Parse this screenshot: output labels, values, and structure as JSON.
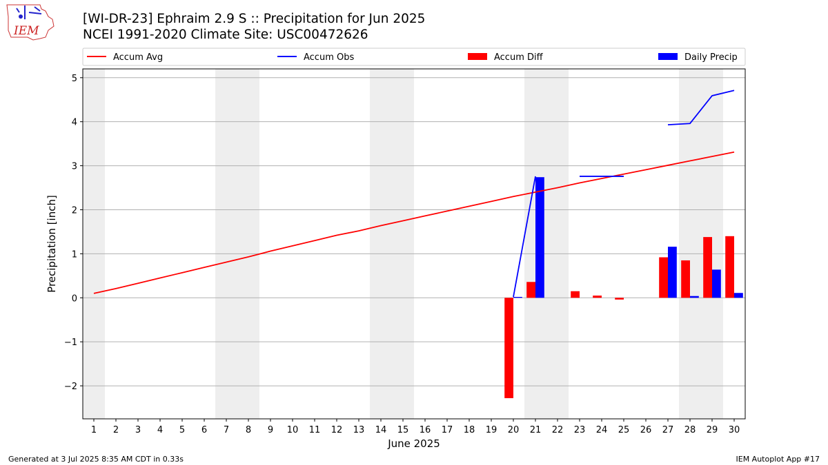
{
  "header": {
    "title_line1": "[WI-DR-23] Ephraim 2.9 S :: Precipitation for Jun 2025",
    "title_line2": "NCEI 1991-2020 Climate Site: USC00472626"
  },
  "logo": {
    "text": "IEM"
  },
  "footer": {
    "left": "Generated at 3 Jul 2025 8:35 AM CDT in 0.33s",
    "right": "IEM Autoplot App #17"
  },
  "colors": {
    "avg": "#ff0000",
    "obs": "#0000ff",
    "diff": "#ff0000",
    "daily": "#0000ff",
    "weekend_shade": "#eeeeee",
    "grid": "#b0b0b0"
  },
  "chart_data": {
    "type": "bar+line",
    "xlabel": "June 2025",
    "ylabel": "Precipitation [inch]",
    "xlim": [
      0.5,
      30.5
    ],
    "ylim": [
      -2.75,
      5.2
    ],
    "yticks": [
      -2,
      -1,
      0,
      1,
      2,
      3,
      4,
      5
    ],
    "ytick_labels": [
      "−2",
      "−1",
      "0",
      "1",
      "2",
      "3",
      "4",
      "5"
    ],
    "days": [
      1,
      2,
      3,
      4,
      5,
      6,
      7,
      8,
      9,
      10,
      11,
      12,
      13,
      14,
      15,
      16,
      17,
      18,
      19,
      20,
      21,
      22,
      23,
      24,
      25,
      26,
      27,
      28,
      29,
      30
    ],
    "grid": "horizontal",
    "legend_placement": "top",
    "weekend_spans": [
      [
        0.5,
        1.5
      ],
      [
        6.5,
        8.5
      ],
      [
        13.5,
        15.5
      ],
      [
        20.5,
        22.5
      ],
      [
        27.5,
        29.5
      ]
    ],
    "legend": [
      "Accum Avg",
      "Accum Obs",
      "Accum Diff",
      "Daily Precip"
    ],
    "series": [
      {
        "name": "Accum Avg",
        "kind": "line",
        "values": [
          0.1,
          0.21,
          0.33,
          0.45,
          0.57,
          0.69,
          0.81,
          0.93,
          1.06,
          1.18,
          1.3,
          1.42,
          1.52,
          1.64,
          1.75,
          1.86,
          1.97,
          2.08,
          2.19,
          2.3,
          2.4,
          2.5,
          2.61,
          2.71,
          2.81,
          2.91,
          3.01,
          3.11,
          3.21,
          3.31
        ]
      },
      {
        "name": "Accum Obs",
        "kind": "line",
        "values": [
          null,
          null,
          null,
          null,
          null,
          null,
          null,
          null,
          null,
          null,
          null,
          null,
          null,
          null,
          null,
          null,
          null,
          null,
          null,
          0.02,
          2.76,
          null,
          2.76,
          2.76,
          2.76,
          null,
          3.93,
          3.96,
          4.59,
          4.71
        ]
      },
      {
        "name": "Accum Diff",
        "kind": "bar",
        "values": [
          null,
          null,
          null,
          null,
          null,
          null,
          null,
          null,
          null,
          -2.28,
          0.36,
          null,
          0.15,
          0.05,
          -0.04,
          null,
          0.92,
          0.85,
          1.38,
          1.4
        ],
        "days": [
          null,
          null,
          null,
          null,
          null,
          null,
          null,
          null,
          null,
          20,
          21,
          null,
          23,
          24,
          25,
          null,
          27,
          28,
          29,
          30
        ]
      },
      {
        "name": "Daily Precip",
        "kind": "bar",
        "values": [
          0.02,
          2.74,
          1.16,
          0.04,
          0.64,
          0.11
        ],
        "days": [
          20,
          21,
          27,
          28,
          29,
          30
        ]
      }
    ]
  }
}
